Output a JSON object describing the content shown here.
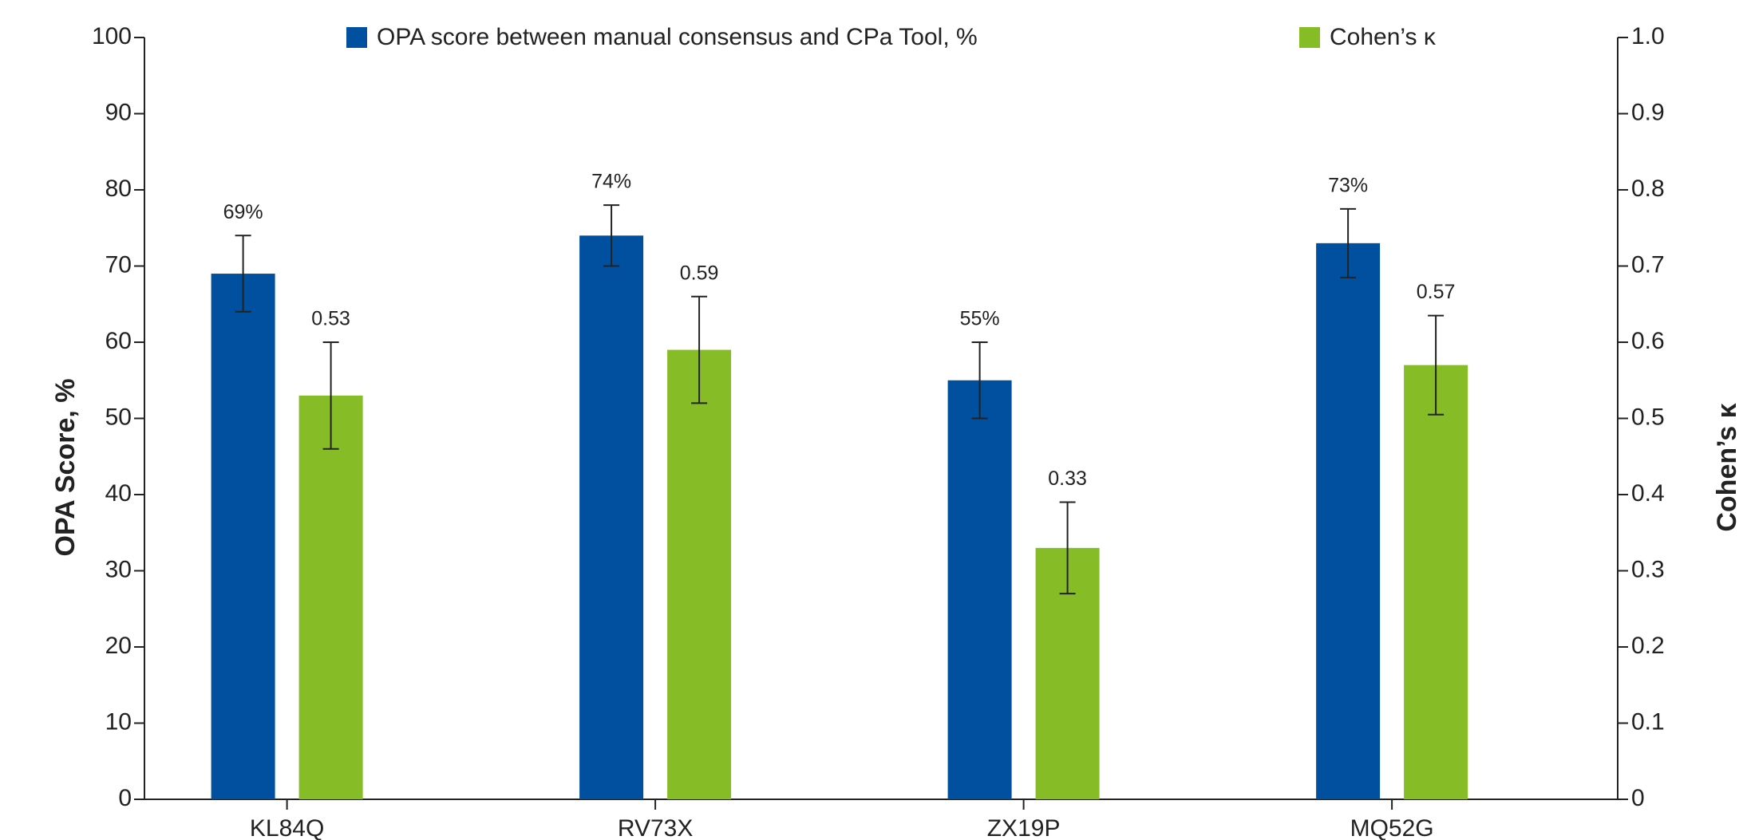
{
  "chart_data": {
    "type": "bar",
    "categories": [
      "KL84Q",
      "RV73X",
      "ZX19P",
      "MQ52G"
    ],
    "series": [
      {
        "name": "OPA score between manual consensus and CPa Tool, %",
        "color": "#0050a0",
        "values": [
          69,
          74,
          55,
          73
        ],
        "value_labels": [
          "69%",
          "74%",
          "55%",
          "73%"
        ],
        "errors": [
          5,
          4,
          5,
          4.5
        ]
      },
      {
        "name": "Cohen’s κ",
        "color": "#86bc25",
        "axis": "y2",
        "values": [
          0.53,
          0.59,
          0.33,
          0.57
        ],
        "errors": [
          0.07,
          0.07,
          0.06,
          0.065
        ]
      }
    ],
    "ylabel": "OPA Score, %",
    "y2label": "Cohen’s κ",
    "ylim": [
      0,
      100
    ],
    "yticks": [
      0,
      10,
      20,
      30,
      40,
      50,
      60,
      70,
      80,
      90,
      100
    ],
    "y2lim": [
      0,
      1
    ],
    "y2ticks": [
      0,
      0.1,
      0.2,
      0.3,
      0.4,
      0.5,
      0.6,
      0.7,
      0.8,
      0.9,
      {
        "value": 1,
        "label": "1.0"
      }
    ],
    "legend": "top",
    "grid": false
  }
}
